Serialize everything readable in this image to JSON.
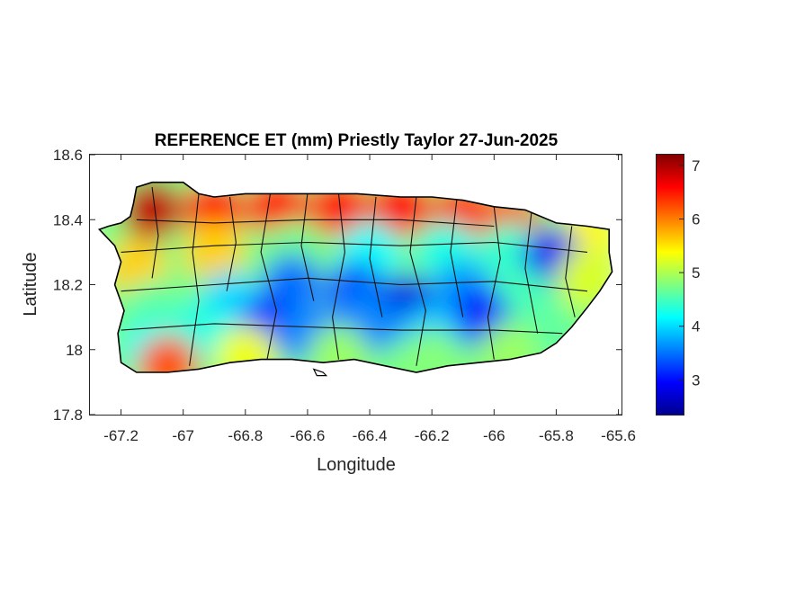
{
  "title": "REFERENCE ET (mm) Priestly Taylor 27-Jun-2025",
  "x_axis": {
    "label": "Longitude",
    "range": [
      -67.3,
      -65.59
    ],
    "ticks": [
      {
        "value": -67.2,
        "label": "-67.2"
      },
      {
        "value": -67.0,
        "label": "-67"
      },
      {
        "value": -66.8,
        "label": "-66.8"
      },
      {
        "value": -66.6,
        "label": "-66.6"
      },
      {
        "value": -66.4,
        "label": "-66.4"
      },
      {
        "value": -66.2,
        "label": "-66.2"
      },
      {
        "value": -66.0,
        "label": "-66"
      },
      {
        "value": -65.8,
        "label": "-65.8"
      },
      {
        "value": -65.6,
        "label": "-65.6"
      }
    ]
  },
  "y_axis": {
    "label": "Latitude",
    "range": [
      17.8,
      18.6
    ],
    "ticks": [
      {
        "value": 17.8,
        "label": "17.8"
      },
      {
        "value": 18.0,
        "label": "18"
      },
      {
        "value": 18.2,
        "label": "18.2"
      },
      {
        "value": 18.4,
        "label": "18.4"
      },
      {
        "value": 18.6,
        "label": "18.6"
      }
    ]
  },
  "colorbar": {
    "colormap": "jet",
    "range": [
      2.35,
      7.2
    ],
    "ticks": [
      {
        "value": 3,
        "label": "3"
      },
      {
        "value": 4,
        "label": "4"
      },
      {
        "value": 5,
        "label": "5"
      },
      {
        "value": 6,
        "label": "6"
      },
      {
        "value": 7,
        "label": "7"
      }
    ]
  },
  "map": {
    "region": "Puerto Rico",
    "island_outline_lonlat": [
      [
        -67.27,
        18.37
      ],
      [
        -67.24,
        18.38
      ],
      [
        -67.2,
        18.39
      ],
      [
        -67.17,
        18.41
      ],
      [
        -67.16,
        18.45
      ],
      [
        -67.15,
        18.5
      ],
      [
        -67.1,
        18.515
      ],
      [
        -67.0,
        18.515
      ],
      [
        -66.95,
        18.48
      ],
      [
        -66.9,
        18.47
      ],
      [
        -66.8,
        18.48
      ],
      [
        -66.7,
        18.48
      ],
      [
        -66.6,
        18.48
      ],
      [
        -66.5,
        18.48
      ],
      [
        -66.44,
        18.48
      ],
      [
        -66.3,
        18.47
      ],
      [
        -66.2,
        18.47
      ],
      [
        -66.1,
        18.46
      ],
      [
        -66.0,
        18.44
      ],
      [
        -65.9,
        18.43
      ],
      [
        -65.8,
        18.39
      ],
      [
        -65.7,
        18.38
      ],
      [
        -65.63,
        18.37
      ],
      [
        -65.63,
        18.3
      ],
      [
        -65.62,
        18.24
      ],
      [
        -65.66,
        18.18
      ],
      [
        -65.7,
        18.13
      ],
      [
        -65.75,
        18.07
      ],
      [
        -65.8,
        18.02
      ],
      [
        -65.85,
        17.99
      ],
      [
        -65.95,
        17.97
      ],
      [
        -66.05,
        17.96
      ],
      [
        -66.15,
        17.95
      ],
      [
        -66.25,
        17.93
      ],
      [
        -66.35,
        17.95
      ],
      [
        -66.45,
        17.97
      ],
      [
        -66.55,
        17.96
      ],
      [
        -66.65,
        17.97
      ],
      [
        -66.75,
        17.97
      ],
      [
        -66.85,
        17.96
      ],
      [
        -66.95,
        17.94
      ],
      [
        -67.05,
        17.93
      ],
      [
        -67.15,
        17.93
      ],
      [
        -67.2,
        17.96
      ],
      [
        -67.21,
        18.05
      ],
      [
        -67.19,
        18.12
      ],
      [
        -67.22,
        18.2
      ],
      [
        -67.2,
        18.27
      ],
      [
        -67.22,
        18.32
      ],
      [
        -67.27,
        18.37
      ]
    ],
    "small_islands_lonlat": [
      [
        [
          -66.58,
          17.94
        ],
        [
          -66.55,
          17.93
        ],
        [
          -66.54,
          17.92
        ],
        [
          -66.57,
          17.92
        ],
        [
          -66.58,
          17.94
        ]
      ]
    ],
    "et_field_samples": [
      {
        "lon": -67.1,
        "lat": 18.43,
        "value": 6.9
      },
      {
        "lon": -66.9,
        "lat": 18.43,
        "value": 6.6
      },
      {
        "lon": -66.7,
        "lat": 18.44,
        "value": 6.5
      },
      {
        "lon": -66.5,
        "lat": 18.44,
        "value": 6.5
      },
      {
        "lon": -66.3,
        "lat": 18.44,
        "value": 6.6
      },
      {
        "lon": -66.1,
        "lat": 18.42,
        "value": 6.4
      },
      {
        "lon": -65.95,
        "lat": 18.39,
        "value": 6.2
      },
      {
        "lon": -65.7,
        "lat": 18.35,
        "value": 5.4
      },
      {
        "lon": -67.15,
        "lat": 18.25,
        "value": 5.6
      },
      {
        "lon": -66.9,
        "lat": 18.3,
        "value": 5.6
      },
      {
        "lon": -66.65,
        "lat": 18.3,
        "value": 4.7
      },
      {
        "lon": -66.4,
        "lat": 18.3,
        "value": 4.2
      },
      {
        "lon": -66.15,
        "lat": 18.3,
        "value": 4.3
      },
      {
        "lon": -65.95,
        "lat": 18.3,
        "value": 4.4
      },
      {
        "lon": -65.81,
        "lat": 18.28,
        "value": 2.9
      },
      {
        "lon": -65.7,
        "lat": 18.22,
        "value": 5.2
      },
      {
        "lon": -67.1,
        "lat": 18.12,
        "value": 4.6
      },
      {
        "lon": -66.85,
        "lat": 18.15,
        "value": 4.0
      },
      {
        "lon": -66.65,
        "lat": 18.2,
        "value": 3.5
      },
      {
        "lon": -66.45,
        "lat": 18.18,
        "value": 3.4
      },
      {
        "lon": -66.28,
        "lat": 18.14,
        "value": 2.8
      },
      {
        "lon": -66.1,
        "lat": 18.18,
        "value": 3.7
      },
      {
        "lon": -65.9,
        "lat": 18.15,
        "value": 4.5
      },
      {
        "lon": -66.72,
        "lat": 18.08,
        "value": 3.2
      },
      {
        "lon": -66.05,
        "lat": 18.1,
        "value": 3.0
      },
      {
        "lon": -67.1,
        "lat": 18.0,
        "value": 4.2
      },
      {
        "lon": -66.95,
        "lat": 18.05,
        "value": 4.3
      },
      {
        "lon": -66.6,
        "lat": 18.05,
        "value": 3.6
      },
      {
        "lon": -66.4,
        "lat": 18.08,
        "value": 3.6
      },
      {
        "lon": -66.2,
        "lat": 18.05,
        "value": 3.9
      },
      {
        "lon": -65.85,
        "lat": 18.05,
        "value": 4.6
      },
      {
        "lon": -67.05,
        "lat": 17.95,
        "value": 6.2
      },
      {
        "lon": -66.8,
        "lat": 17.98,
        "value": 5.3
      },
      {
        "lon": -66.5,
        "lat": 17.98,
        "value": 4.9
      },
      {
        "lon": -66.2,
        "lat": 17.97,
        "value": 4.8
      },
      {
        "lon": -65.95,
        "lat": 17.99,
        "value": 4.9
      }
    ]
  }
}
